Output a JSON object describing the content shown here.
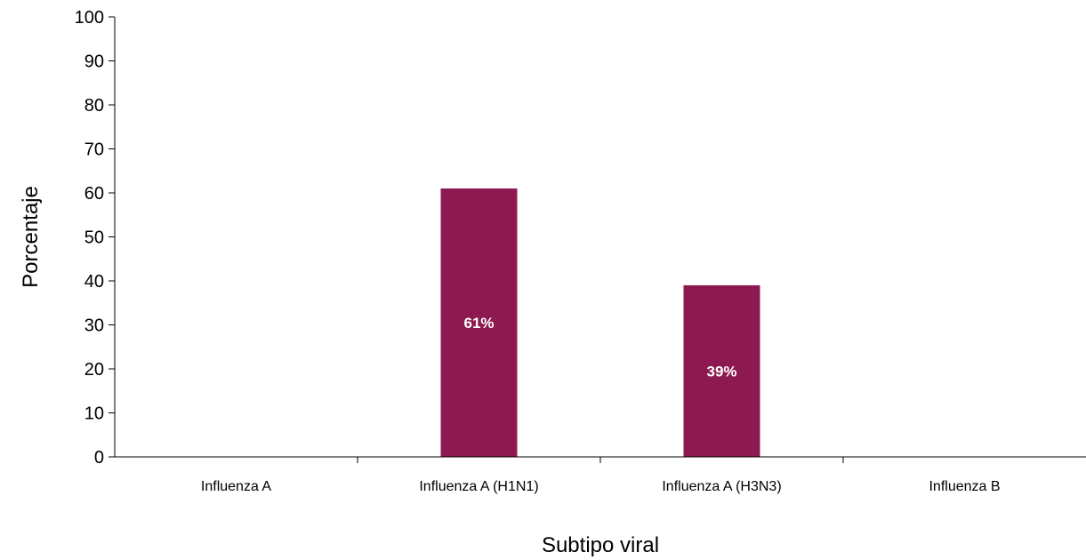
{
  "chart_data": {
    "type": "bar",
    "categories": [
      "Influenza A",
      "Influenza A (H1N1)",
      "Influenza A (H3N3)",
      "Influenza B"
    ],
    "values": [
      0,
      61,
      39,
      0
    ],
    "data_labels": [
      "",
      "61%",
      "39%",
      ""
    ],
    "title": "",
    "xlabel": "Subtipo viral",
    "ylabel": "Porcentaje",
    "ylim": [
      0,
      100
    ],
    "yticks": [
      0,
      10,
      20,
      30,
      40,
      50,
      60,
      70,
      80,
      90,
      100
    ],
    "ytick_labels": [
      "0",
      "10",
      "20",
      "30",
      "40",
      "50",
      "60",
      "70",
      "80",
      "90",
      "100"
    ],
    "grid": false,
    "legend": "none",
    "bar_color": "#8c1a50"
  }
}
